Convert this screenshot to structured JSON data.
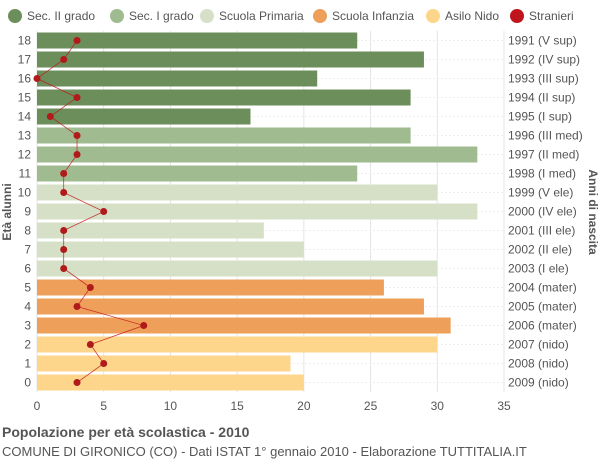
{
  "chart_data": {
    "type": "bar",
    "orientation": "horizontal",
    "y_label_left": "Età alunni",
    "y_label_right": "Anni di nascita",
    "xlim": [
      0,
      35
    ],
    "x_ticks": [
      0,
      5,
      10,
      15,
      20,
      25,
      30,
      35
    ],
    "grid": true,
    "legend_position": "top",
    "legend": [
      {
        "name": "Sec. II grado",
        "color": "#6b8e5a"
      },
      {
        "name": "Sec. I grado",
        "color": "#9fbb8f"
      },
      {
        "name": "Scuola Primaria",
        "color": "#d5e0c7"
      },
      {
        "name": "Scuola Infanzia",
        "color": "#ee9f59"
      },
      {
        "name": "Asilo Nido",
        "color": "#fdd68b"
      },
      {
        "name": "Stranieri",
        "color": "#c0141c"
      }
    ],
    "rows": [
      {
        "age": "18",
        "birth": "1991 (V sup)",
        "value": 24,
        "stranieri": 3,
        "group": 0
      },
      {
        "age": "17",
        "birth": "1992 (IV sup)",
        "value": 29,
        "stranieri": 2,
        "group": 0
      },
      {
        "age": "16",
        "birth": "1993 (III sup)",
        "value": 21,
        "stranieri": 0,
        "group": 0
      },
      {
        "age": "15",
        "birth": "1994 (II sup)",
        "value": 28,
        "stranieri": 3,
        "group": 0
      },
      {
        "age": "14",
        "birth": "1995 (I sup)",
        "value": 16,
        "stranieri": 1,
        "group": 0
      },
      {
        "age": "13",
        "birth": "1996 (III med)",
        "value": 28,
        "stranieri": 3,
        "group": 1
      },
      {
        "age": "12",
        "birth": "1997 (II med)",
        "value": 33,
        "stranieri": 3,
        "group": 1
      },
      {
        "age": "11",
        "birth": "1998 (I med)",
        "value": 24,
        "stranieri": 2,
        "group": 1
      },
      {
        "age": "10",
        "birth": "1999 (V ele)",
        "value": 30,
        "stranieri": 2,
        "group": 2
      },
      {
        "age": "9",
        "birth": "2000 (IV ele)",
        "value": 33,
        "stranieri": 5,
        "group": 2
      },
      {
        "age": "8",
        "birth": "2001 (III ele)",
        "value": 17,
        "stranieri": 2,
        "group": 2
      },
      {
        "age": "7",
        "birth": "2002 (II ele)",
        "value": 20,
        "stranieri": 2,
        "group": 2
      },
      {
        "age": "6",
        "birth": "2003 (I ele)",
        "value": 30,
        "stranieri": 2,
        "group": 2
      },
      {
        "age": "5",
        "birth": "2004 (mater)",
        "value": 26,
        "stranieri": 4,
        "group": 3
      },
      {
        "age": "4",
        "birth": "2005 (mater)",
        "value": 29,
        "stranieri": 3,
        "group": 3
      },
      {
        "age": "3",
        "birth": "2006 (mater)",
        "value": 31,
        "stranieri": 8,
        "group": 3
      },
      {
        "age": "2",
        "birth": "2007 (nido)",
        "value": 30,
        "stranieri": 4,
        "group": 4
      },
      {
        "age": "1",
        "birth": "2008 (nido)",
        "value": 19,
        "stranieri": 5,
        "group": 4
      },
      {
        "age": "0",
        "birth": "2009 (nido)",
        "value": 20,
        "stranieri": 3,
        "group": 4
      }
    ]
  },
  "footer": {
    "title": "Popolazione per età scolastica - 2010",
    "subtitle": "COMUNE DI GIRONICO (CO) - Dati ISTAT 1° gennaio 2010 - Elaborazione TUTTITALIA.IT"
  }
}
